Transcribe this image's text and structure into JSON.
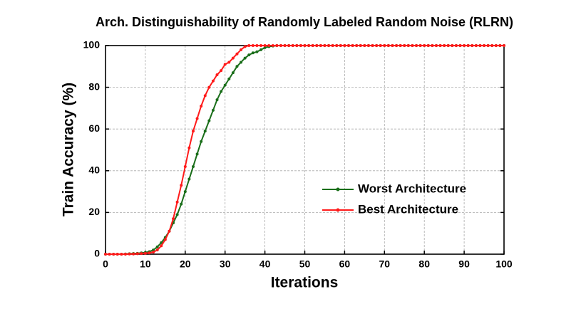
{
  "chart_data": {
    "type": "line",
    "title": "Arch. Distinguishability of Randomly Labeled Random Noise (RLRN)",
    "x_label": "Iterations",
    "y_label": "Train Accuracy (%)",
    "x": [
      0,
      1,
      2,
      3,
      4,
      5,
      6,
      7,
      8,
      9,
      10,
      11,
      12,
      13,
      14,
      15,
      16,
      17,
      18,
      19,
      20,
      21,
      22,
      23,
      24,
      25,
      26,
      27,
      28,
      29,
      30,
      31,
      32,
      33,
      34,
      35,
      36,
      37,
      38,
      39,
      40,
      41,
      42,
      43,
      44,
      45,
      46,
      47,
      48,
      49,
      50,
      51,
      52,
      53,
      54,
      55,
      56,
      57,
      58,
      59,
      60,
      61,
      62,
      63,
      64,
      65,
      66,
      67,
      68,
      69,
      70,
      71,
      72,
      73,
      74,
      75,
      76,
      77,
      78,
      79,
      80,
      81,
      82,
      83,
      84,
      85,
      86,
      87,
      88,
      89,
      90,
      91,
      92,
      93,
      94,
      95,
      96,
      97,
      98,
      99,
      100
    ],
    "series": [
      {
        "name": "Worst Architecture",
        "color": "#1a6e1a",
        "values": [
          0,
          0,
          0,
          0,
          0,
          0.1,
          0.2,
          0.3,
          0.4,
          0.6,
          0.8,
          1.2,
          2,
          3.5,
          5.5,
          8,
          11,
          15,
          19,
          24,
          30,
          36,
          42,
          48,
          54,
          59,
          64,
          69,
          74,
          78,
          81,
          84,
          87,
          90,
          92,
          94,
          95.5,
          96.5,
          97,
          98,
          99,
          99.5,
          99.8,
          100,
          100,
          100,
          100,
          100,
          100,
          100,
          100,
          100,
          100,
          100,
          100,
          100,
          100,
          100,
          100,
          100,
          100,
          100,
          100,
          100,
          100,
          100,
          100,
          100,
          100,
          100,
          100,
          100,
          100,
          100,
          100,
          100,
          100,
          100,
          100,
          100,
          100,
          100,
          100,
          100,
          100,
          100,
          100,
          100,
          100,
          100,
          100,
          100,
          100,
          100,
          100,
          100,
          100,
          100,
          100,
          100,
          100
        ]
      },
      {
        "name": "Best Architecture",
        "color": "#ff1a1a",
        "values": [
          0,
          0,
          0,
          0,
          0,
          0,
          0.1,
          0.1,
          0.2,
          0.3,
          0.4,
          0.6,
          1,
          2,
          4,
          7,
          11,
          17,
          25,
          33,
          42,
          51,
          59,
          65,
          71,
          76,
          80,
          83,
          86,
          88,
          91,
          92,
          94,
          96,
          98,
          99.5,
          100,
          100,
          100,
          100,
          100,
          100,
          100,
          100,
          100,
          100,
          100,
          100,
          100,
          100,
          100,
          100,
          100,
          100,
          100,
          100,
          100,
          100,
          100,
          100,
          100,
          100,
          100,
          100,
          100,
          100,
          100,
          100,
          100,
          100,
          100,
          100,
          100,
          100,
          100,
          100,
          100,
          100,
          100,
          100,
          100,
          100,
          100,
          100,
          100,
          100,
          100,
          100,
          100,
          100,
          100,
          100,
          100,
          100,
          100,
          100,
          100,
          100,
          100,
          100,
          100
        ]
      }
    ],
    "xlim": [
      0,
      100
    ],
    "xticks": [
      0,
      10,
      20,
      30,
      40,
      50,
      60,
      70,
      80,
      90,
      100
    ],
    "ylim": [
      0,
      100
    ],
    "yticks": [
      0,
      20,
      40,
      60,
      80,
      100
    ],
    "grid": true,
    "legend": "lower right"
  }
}
